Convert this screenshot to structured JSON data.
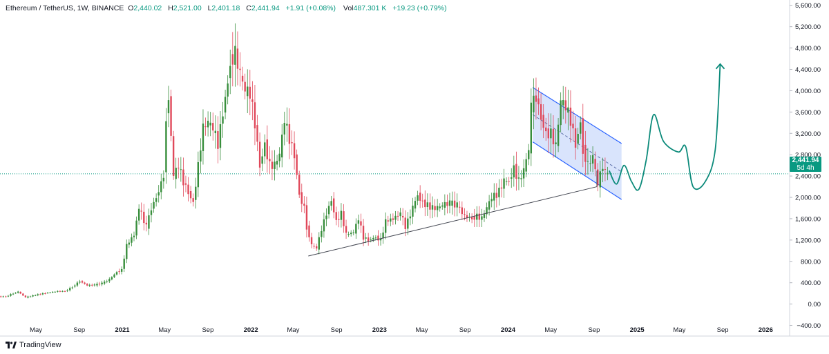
{
  "legend": {
    "symbol": "Ethereum / TetherUS, 1W, BINANCE",
    "o_label": "O",
    "o_value": "2,440.02",
    "h_label": "H",
    "h_value": "2,521.00",
    "l_label": "L",
    "l_value": "2,401.18",
    "c_label": "C",
    "c_value": "2,441.94",
    "change": "+1.91 (+0.08%)",
    "vol_label": "Vol",
    "vol_value": "487.301 K",
    "vol_change": "+19.23 (+0.79%)"
  },
  "price_tag": {
    "price": "2,441.94",
    "countdown": "5d 4h"
  },
  "branding": {
    "name": "TradingView"
  },
  "colors": {
    "up": "#388e3c",
    "down": "#e0485a",
    "line_teal": "#089981",
    "channel_fill": "#c9d8fb",
    "channel_line": "#2962ff",
    "trendline": "#434651",
    "projection": "#0b8a7a",
    "grid": "#f0f3fa"
  },
  "chart_data": {
    "type": "candlestick",
    "timeframe": "1W",
    "y_ticks": [
      "5,600.00",
      "5,200.00",
      "4,800.00",
      "4,400.00",
      "4,000.00",
      "3,600.00",
      "3,200.00",
      "2,800.00",
      "2,400.00",
      "2,000.00",
      "1,600.00",
      "1,200.00",
      "800.00",
      "400.00",
      "0.00",
      "−400.00"
    ],
    "y_tick_values": [
      5600,
      5200,
      4800,
      4400,
      4000,
      3600,
      3200,
      2800,
      2400,
      2000,
      1600,
      1200,
      800,
      400,
      0,
      -400
    ],
    "ylim": [
      -600,
      5700
    ],
    "x_ticks": [
      "May",
      "Sep",
      "2021",
      "May",
      "Sep",
      "2022",
      "May",
      "Sep",
      "2023",
      "May",
      "Sep",
      "2024",
      "May",
      "Sep",
      "2025",
      "May",
      "Sep",
      "2026"
    ],
    "x_tick_dates": [
      "2020-05-01",
      "2020-09-01",
      "2021-01-01",
      "2021-05-01",
      "2021-09-01",
      "2022-01-01",
      "2022-05-01",
      "2022-09-01",
      "2023-01-01",
      "2023-05-01",
      "2023-09-01",
      "2024-01-01",
      "2024-05-01",
      "2024-09-01",
      "2025-01-01",
      "2025-05-01",
      "2025-09-01",
      "2026-01-01"
    ],
    "x_tick_bold": [
      false,
      false,
      true,
      false,
      false,
      true,
      false,
      false,
      true,
      false,
      false,
      true,
      false,
      false,
      true,
      false,
      false,
      true
    ],
    "xlim": [
      "2020-01-20",
      "2026-03-10"
    ],
    "last_price": 2441.94,
    "closes": [
      [
        "2020-01-20",
        140
      ],
      [
        "2020-02-10",
        200
      ],
      [
        "2020-03-02",
        230
      ],
      [
        "2020-03-16",
        125
      ],
      [
        "2020-04-06",
        170
      ],
      [
        "2020-05-04",
        205
      ],
      [
        "2020-06-01",
        240
      ],
      [
        "2020-07-06",
        240
      ],
      [
        "2020-07-27",
        320
      ],
      [
        "2020-08-17",
        430
      ],
      [
        "2020-09-07",
        350
      ],
      [
        "2020-09-28",
        360
      ],
      [
        "2020-10-19",
        390
      ],
      [
        "2020-11-09",
        460
      ],
      [
        "2020-11-30",
        600
      ],
      [
        "2020-12-21",
        640
      ],
      [
        "2021-01-04",
        1100
      ],
      [
        "2021-01-18",
        1300
      ],
      [
        "2021-02-08",
        1800
      ],
      [
        "2021-02-22",
        1450
      ],
      [
        "2021-03-15",
        1800
      ],
      [
        "2021-03-29",
        2000
      ],
      [
        "2021-04-12",
        2400
      ],
      [
        "2021-05-03",
        3500
      ],
      [
        "2021-05-10",
        3900
      ],
      [
        "2021-05-17",
        2400
      ],
      [
        "2021-05-31",
        2600
      ],
      [
        "2021-06-14",
        2300
      ],
      [
        "2021-06-28",
        2100
      ],
      [
        "2021-07-12",
        1900
      ],
      [
        "2021-07-26",
        2600
      ],
      [
        "2021-08-09",
        3300
      ],
      [
        "2021-08-23",
        3400
      ],
      [
        "2021-09-06",
        3300
      ],
      [
        "2021-09-20",
        3000
      ],
      [
        "2021-10-04",
        3600
      ],
      [
        "2021-10-18",
        4150
      ],
      [
        "2021-11-01",
        4550
      ],
      [
        "2021-11-08",
        4700
      ],
      [
        "2021-11-22",
        4300
      ],
      [
        "2021-12-06",
        4000
      ],
      [
        "2021-12-20",
        3950
      ],
      [
        "2022-01-03",
        3400
      ],
      [
        "2022-01-17",
        2600
      ],
      [
        "2022-01-31",
        3000
      ],
      [
        "2022-02-14",
        2600
      ],
      [
        "2022-02-28",
        2600
      ],
      [
        "2022-03-14",
        2800
      ],
      [
        "2022-03-28",
        3450
      ],
      [
        "2022-04-11",
        3100
      ],
      [
        "2022-04-25",
        2800
      ],
      [
        "2022-05-09",
        2050
      ],
      [
        "2022-05-23",
        1800
      ],
      [
        "2022-06-06",
        1450
      ],
      [
        "2022-06-13",
        1100
      ],
      [
        "2022-06-27",
        1050
      ],
      [
        "2022-07-11",
        1400
      ],
      [
        "2022-07-25",
        1700
      ],
      [
        "2022-08-08",
        1950
      ],
      [
        "2022-08-22",
        1550
      ],
      [
        "2022-09-05",
        1700
      ],
      [
        "2022-09-19",
        1300
      ],
      [
        "2022-10-03",
        1350
      ],
      [
        "2022-10-24",
        1600
      ],
      [
        "2022-11-07",
        1250
      ],
      [
        "2022-11-21",
        1200
      ],
      [
        "2022-12-05",
        1250
      ],
      [
        "2022-12-26",
        1200
      ],
      [
        "2023-01-09",
        1550
      ],
      [
        "2023-01-23",
        1600
      ],
      [
        "2023-02-13",
        1700
      ],
      [
        "2023-03-06",
        1450
      ],
      [
        "2023-03-20",
        1800
      ],
      [
        "2023-04-10",
        2050
      ],
      [
        "2023-04-24",
        1900
      ],
      [
        "2023-05-08",
        1800
      ],
      [
        "2023-06-05",
        1800
      ],
      [
        "2023-06-19",
        1850
      ],
      [
        "2023-07-03",
        1900
      ],
      [
        "2023-07-24",
        1850
      ],
      [
        "2023-08-14",
        1650
      ],
      [
        "2023-09-04",
        1600
      ],
      [
        "2023-09-25",
        1650
      ],
      [
        "2023-10-09",
        1600
      ],
      [
        "2023-10-23",
        1800
      ],
      [
        "2023-11-06",
        2000
      ],
      [
        "2023-11-20",
        2050
      ],
      [
        "2023-12-04",
        2300
      ],
      [
        "2023-12-25",
        2300
      ],
      [
        "2024-01-08",
        2550
      ],
      [
        "2024-01-22",
        2300
      ],
      [
        "2024-02-05",
        2500
      ],
      [
        "2024-02-19",
        2900
      ],
      [
        "2024-03-04",
        3700
      ],
      [
        "2024-03-11",
        3900
      ],
      [
        "2024-03-25",
        3500
      ],
      [
        "2024-04-08",
        3200
      ],
      [
        "2024-04-22",
        3200
      ],
      [
        "2024-05-06",
        2950
      ],
      [
        "2024-05-20",
        3800
      ],
      [
        "2024-06-03",
        3700
      ],
      [
        "2024-06-17",
        3450
      ],
      [
        "2024-07-01",
        3000
      ],
      [
        "2024-07-15",
        3400
      ],
      [
        "2024-07-29",
        2900
      ],
      [
        "2024-08-05",
        2600
      ],
      [
        "2024-08-19",
        2750
      ],
      [
        "2024-09-02",
        2250
      ],
      [
        "2024-09-16",
        2600
      ],
      [
        "2024-09-30",
        2450
      ],
      [
        "2024-10-07",
        2441.94
      ]
    ],
    "annotations": {
      "channel": {
        "upper": [
          [
            "2024-03-11",
            4060
          ],
          [
            "2024-11-18",
            3010
          ]
        ],
        "lower": [
          [
            "2024-03-11",
            3040
          ],
          [
            "2024-11-18",
            1960
          ]
        ],
        "mid": [
          [
            "2024-03-11",
            3550
          ],
          [
            "2024-11-18",
            2480
          ]
        ]
      },
      "trendline": [
        [
          "2022-06-13",
          900
        ],
        [
          "2024-09-09",
          2200
        ]
      ],
      "vertical_marker": [
        [
          "2024-09-09",
          2200
        ],
        [
          "2024-09-09",
          2500
        ]
      ],
      "projection": [
        [
          "2024-10-14",
          2500
        ],
        [
          "2024-11-04",
          2250
        ],
        [
          "2024-11-25",
          2600
        ],
        [
          "2024-12-16",
          2300
        ],
        [
          "2025-01-06",
          2150
        ],
        [
          "2025-01-27",
          2700
        ],
        [
          "2025-02-17",
          3550
        ],
        [
          "2025-03-17",
          3050
        ],
        [
          "2025-04-28",
          2850
        ],
        [
          "2025-05-19",
          2950
        ],
        [
          "2025-06-09",
          2200
        ],
        [
          "2025-07-14",
          2300
        ],
        [
          "2025-08-11",
          2900
        ],
        [
          "2025-08-25",
          4500
        ]
      ]
    }
  }
}
